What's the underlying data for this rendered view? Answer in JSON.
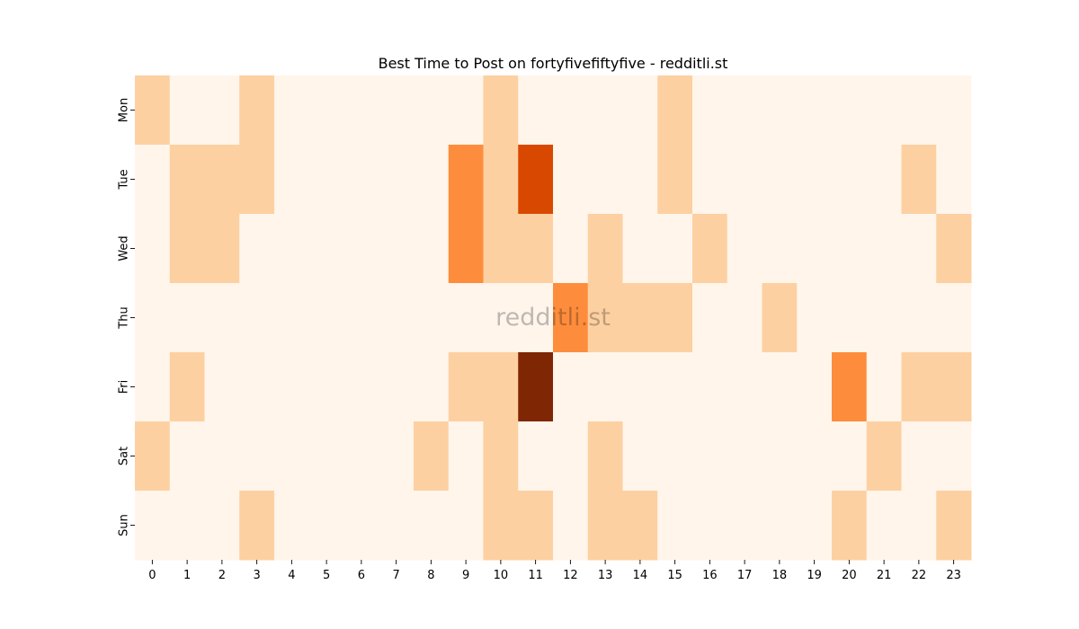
{
  "chart_data": {
    "type": "heatmap",
    "title": "Best Time to Post on fortyfivefiftyfive - redditli.st",
    "watermark": "redditli.st",
    "xlabel": "",
    "ylabel": "",
    "x": [
      "0",
      "1",
      "2",
      "3",
      "4",
      "5",
      "6",
      "7",
      "8",
      "9",
      "10",
      "11",
      "12",
      "13",
      "14",
      "15",
      "16",
      "17",
      "18",
      "19",
      "20",
      "21",
      "22",
      "23"
    ],
    "y": [
      "Mon",
      "Tue",
      "Wed",
      "Thu",
      "Fri",
      "Sat",
      "Sun"
    ],
    "values": [
      [
        1,
        0,
        0,
        1,
        0,
        0,
        0,
        0,
        0,
        0,
        1,
        0,
        0,
        0,
        0,
        1,
        0,
        0,
        0,
        0,
        0,
        0,
        0,
        0
      ],
      [
        0,
        1,
        1,
        1,
        0,
        0,
        0,
        0,
        0,
        3,
        1,
        5,
        0,
        0,
        0,
        1,
        0,
        0,
        0,
        0,
        0,
        0,
        1,
        0
      ],
      [
        0,
        1,
        1,
        0,
        0,
        0,
        0,
        0,
        0,
        3,
        1,
        1,
        0,
        1,
        0,
        0,
        1,
        0,
        0,
        0,
        0,
        0,
        0,
        1
      ],
      [
        0,
        0,
        0,
        0,
        0,
        0,
        0,
        0,
        0,
        0,
        0,
        0,
        3,
        1,
        1,
        1,
        0,
        0,
        1,
        0,
        0,
        0,
        0,
        0
      ],
      [
        0,
        1,
        0,
        0,
        0,
        0,
        0,
        0,
        0,
        1,
        1,
        6,
        0,
        0,
        0,
        0,
        0,
        0,
        0,
        0,
        3,
        0,
        1,
        1
      ],
      [
        1,
        0,
        0,
        0,
        0,
        0,
        0,
        0,
        1,
        0,
        1,
        0,
        0,
        1,
        0,
        0,
        0,
        0,
        0,
        0,
        0,
        1,
        0,
        0
      ],
      [
        0,
        0,
        0,
        1,
        0,
        0,
        0,
        0,
        0,
        0,
        1,
        1,
        0,
        1,
        1,
        0,
        0,
        0,
        0,
        0,
        1,
        0,
        0,
        1
      ]
    ],
    "value_range": [
      0,
      6
    ],
    "colormap": "Oranges",
    "colors": {
      "0": "#fff5eb",
      "1": "#fdd0a2",
      "3": "#fd8d3c",
      "5": "#d94801",
      "6": "#7f2704"
    },
    "grid": false,
    "legend": "none"
  }
}
